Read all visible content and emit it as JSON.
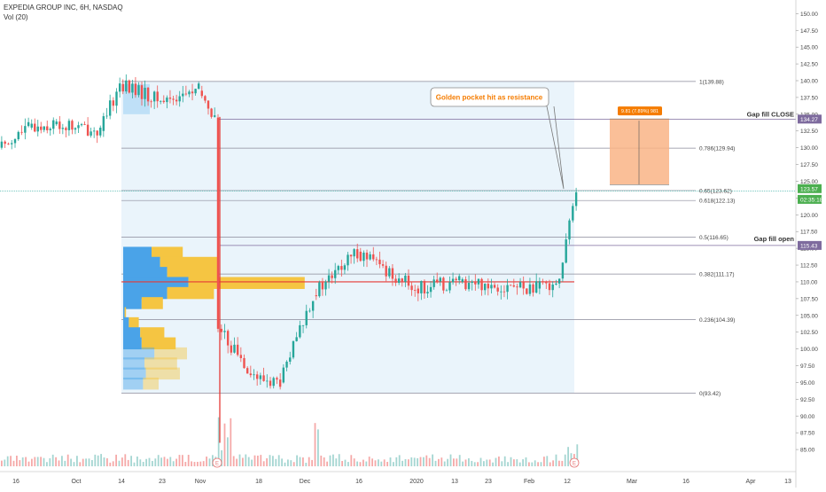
{
  "header": {
    "symbol_line": "EXPEDIA GROUP INC, 6H, NASDAQ",
    "volume_line": "Vol (20)"
  },
  "annotations": {
    "callout": "Golden pocket hit as resistance",
    "gap_close": "Gap fill CLOSE",
    "gap_open": "Gap fill open",
    "target_box_label": "9.81 (7.89%) 981",
    "earnings_marker": "E"
  },
  "price_tags": {
    "gap_close": "134.27",
    "current": "123.57",
    "countdown": "02:35:18",
    "gap_open": "115.43"
  },
  "colors": {
    "up": "#26a69a",
    "down": "#ef5350",
    "fib_box": "#eaf4fb",
    "target_box": "#f9b486",
    "target_label": "#f57c00",
    "profile_blue": "#4aa3e8",
    "profile_yellow": "#f5c542",
    "tag_purple": "#7e6b9e",
    "tag_green": "#4caf50"
  },
  "chart_data": {
    "type": "candlestick",
    "title": "EXPEDIA GROUP INC, 6H, NASDAQ",
    "ylim": [
      82.5,
      151.5
    ],
    "y_ticks": [
      85.0,
      87.5,
      90.0,
      92.5,
      95.0,
      97.5,
      100.0,
      102.5,
      105.0,
      107.5,
      110.0,
      112.5,
      115.0,
      117.5,
      120.0,
      122.5,
      125.0,
      127.5,
      130.0,
      132.5,
      135.0,
      137.5,
      140.0,
      142.5,
      145.0,
      147.5,
      150.0
    ],
    "x_ticks": [
      "16",
      "Oct",
      "14",
      "23",
      "Nov",
      "18",
      "Dec",
      "16",
      "2020",
      "13",
      "23",
      "Feb",
      "12",
      "Mar",
      "16",
      "Apr",
      "13"
    ],
    "price_path": [
      {
        "t": "Sep 12",
        "price": 130.0
      },
      {
        "t": "Sep 20",
        "price": 133.0
      },
      {
        "t": "Sep 30",
        "price": 133.5
      },
      {
        "t": "Oct 8",
        "price": 132.5
      },
      {
        "t": "Oct 14",
        "price": 139.5
      },
      {
        "t": "Oct 23",
        "price": 137.0
      },
      {
        "t": "Nov 1",
        "price": 138.5
      },
      {
        "t": "Nov 7",
        "price": 134.5
      },
      {
        "t": "Nov 8",
        "price": 103.0
      },
      {
        "t": "Nov 18",
        "price": 95.5
      },
      {
        "t": "Nov 26",
        "price": 95.0
      },
      {
        "t": "Dec 5",
        "price": 108.0
      },
      {
        "t": "Dec 16",
        "price": 114.5
      },
      {
        "t": "Jan 2",
        "price": 109.0
      },
      {
        "t": "Jan 20",
        "price": 110.0
      },
      {
        "t": "Feb 5",
        "price": 109.0
      },
      {
        "t": "Feb 11",
        "price": 110.5
      },
      {
        "t": "Feb 12",
        "price": 123.57
      }
    ],
    "fibonacci": [
      {
        "level": "1",
        "price": 139.88,
        "label": "1(139.88)"
      },
      {
        "level": "0.786",
        "price": 129.94,
        "label": "0.786(129.94)"
      },
      {
        "level": "0.65",
        "price": 123.62,
        "label": "0.65(123.62)"
      },
      {
        "level": "0.618",
        "price": 122.13,
        "label": "0.618(122.13)"
      },
      {
        "level": "0.5",
        "price": 116.65,
        "label": "0.5(116.65)"
      },
      {
        "level": "0.382",
        "price": 111.17,
        "label": "0.382(111.17)"
      },
      {
        "level": "0.236",
        "price": 104.39,
        "label": "0.236(104.39)"
      },
      {
        "level": "0",
        "price": 93.42,
        "label": "0(93.42)"
      }
    ],
    "horizontal_lines": [
      {
        "name": "gap_fill_close",
        "price": 134.27
      },
      {
        "name": "gap_fill_open",
        "price": 115.43
      },
      {
        "name": "profile_poc",
        "price": 110.0
      }
    ],
    "target_range": {
      "from": 124.5,
      "to": 134.3,
      "change": "9.81 (7.89%) 981"
    },
    "volume_profile": [
      {
        "price": 114.3,
        "buy": 20,
        "sell": 22
      },
      {
        "price": 112.8,
        "buy": 26,
        "sell": 41
      },
      {
        "price": 111.3,
        "buy": 31,
        "sell": 36
      },
      {
        "price": 109.8,
        "buy": 46,
        "sell": 82
      },
      {
        "price": 108.3,
        "buy": 31,
        "sell": 33
      },
      {
        "price": 106.8,
        "buy": 13,
        "sell": 15
      },
      {
        "price": 105.3,
        "buy": 1,
        "sell": 1
      },
      {
        "price": 103.8,
        "buy": 4,
        "sell": 7
      },
      {
        "price": 102.3,
        "buy": 12,
        "sell": 17
      },
      {
        "price": 100.8,
        "buy": 13,
        "sell": 24
      },
      {
        "price": 99.3,
        "buy": 22,
        "sell": 23
      },
      {
        "price": 97.8,
        "buy": 15,
        "sell": 23
      },
      {
        "price": 96.3,
        "buy": 16,
        "sell": 24
      },
      {
        "price": 94.8,
        "buy": 14,
        "sell": 11
      }
    ]
  }
}
